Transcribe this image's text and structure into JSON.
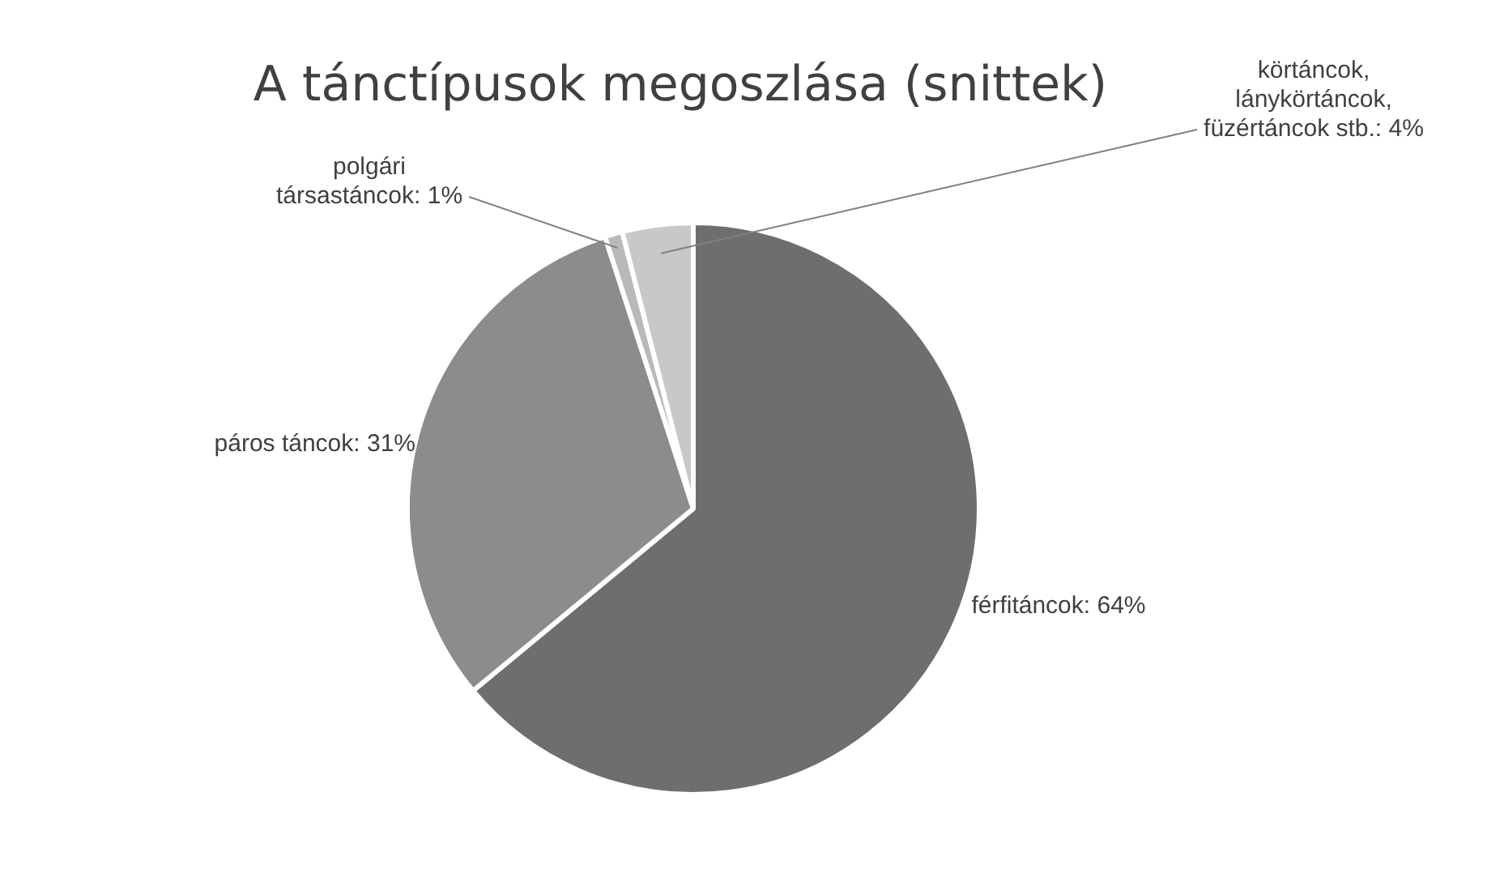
{
  "chart_data": {
    "type": "pie",
    "title": "A tánctípusok megoszlása (snittek)",
    "categories": [
      "férfitáncok",
      "páros táncok",
      "polgári társastáncok",
      "körtáncok, lánykörtáncok, füzértáncok stb."
    ],
    "values": [
      64,
      31,
      1,
      4
    ],
    "value_labels": [
      "64%",
      "31%",
      "1%",
      "4%"
    ],
    "colors": [
      "#6e6e6e",
      "#8c8c8c",
      "#b9b9b9",
      "#c8c8c8"
    ],
    "legend": false
  }
}
